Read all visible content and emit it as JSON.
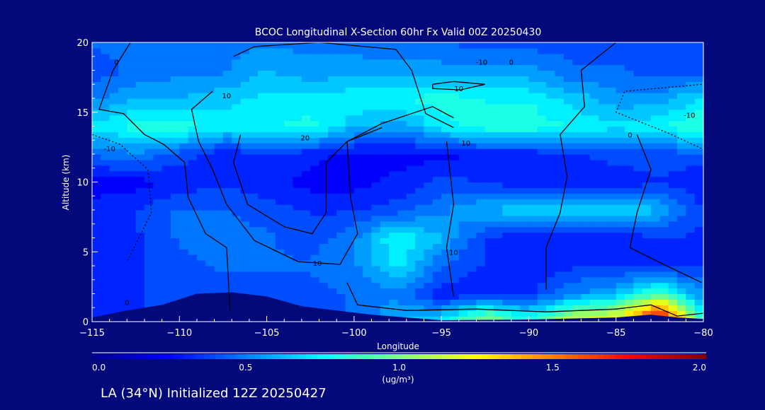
{
  "chart_data": {
    "type": "heatmap",
    "title": "BCOC Longitudinal X-Section 60hr  Fx Valid 00Z 20250430",
    "xlabel": "Longitude",
    "ylabel": "Altitude (km)",
    "xlim": [
      -115,
      -80
    ],
    "ylim": [
      0,
      20
    ],
    "x_ticks": [
      -115,
      -110,
      -105,
      -100,
      -95,
      -90,
      -85,
      -80
    ],
    "x_tick_labels": [
      "−115",
      "−110",
      "−105",
      "−100",
      "−95",
      "−90",
      "−85",
      "−80"
    ],
    "y_ticks": [
      0,
      5,
      10,
      15,
      20
    ],
    "y_tick_labels": [
      "0",
      "5",
      "10",
      "15",
      "20"
    ],
    "grid_lon": [
      -115,
      -112.5,
      -110,
      -107.5,
      -105,
      -102.5,
      -100,
      -97.5,
      -95,
      -92.5,
      -90,
      -87.5,
      -85,
      -82.5,
      -80
    ],
    "grid_alt": [
      0,
      2,
      4,
      6,
      8,
      10,
      12,
      14,
      16,
      18,
      20
    ],
    "values": [
      [
        0.3,
        0.35,
        0.4,
        0.4,
        0.4,
        0.4,
        0.45,
        0.6,
        0.7,
        1.1,
        0.8,
        1.2,
        1.3,
        2.0,
        0.8
      ],
      [
        0.35,
        0.35,
        0.4,
        0.4,
        0.4,
        0.4,
        0.45,
        0.5,
        0.3,
        0.3,
        0.35,
        0.5,
        0.6,
        0.9,
        0.5
      ],
      [
        0.3,
        0.35,
        0.4,
        0.45,
        0.45,
        0.45,
        0.5,
        0.7,
        0.45,
        0.35,
        0.3,
        0.35,
        0.35,
        0.3,
        0.35
      ],
      [
        0.3,
        0.35,
        0.45,
        0.5,
        0.45,
        0.4,
        0.5,
        0.78,
        0.6,
        0.35,
        0.3,
        0.3,
        0.3,
        0.35,
        0.35
      ],
      [
        0.3,
        0.35,
        0.45,
        0.45,
        0.4,
        0.35,
        0.35,
        0.4,
        0.5,
        0.62,
        0.65,
        0.72,
        0.72,
        0.6,
        0.35
      ],
      [
        0.25,
        0.25,
        0.3,
        0.35,
        0.3,
        0.25,
        0.25,
        0.3,
        0.4,
        0.35,
        0.3,
        0.3,
        0.3,
        0.35,
        0.3
      ],
      [
        0.45,
        0.5,
        0.4,
        0.3,
        0.35,
        0.3,
        0.25,
        0.25,
        0.25,
        0.3,
        0.3,
        0.35,
        0.4,
        0.4,
        0.4
      ],
      [
        0.7,
        0.8,
        0.82,
        0.72,
        0.75,
        0.8,
        0.62,
        0.55,
        0.72,
        0.82,
        0.82,
        0.75,
        0.7,
        0.75,
        0.85
      ],
      [
        0.5,
        0.6,
        0.6,
        0.65,
        0.7,
        0.7,
        0.75,
        0.75,
        0.8,
        0.75,
        0.75,
        0.65,
        0.55,
        0.55,
        0.7
      ],
      [
        0.4,
        0.45,
        0.5,
        0.5,
        0.6,
        0.55,
        0.55,
        0.55,
        0.55,
        0.55,
        0.55,
        0.45,
        0.45,
        0.4,
        0.4
      ],
      [
        0.45,
        0.5,
        0.5,
        0.5,
        0.5,
        0.5,
        0.5,
        0.45,
        0.45,
        0.4,
        0.4,
        0.4,
        0.4,
        0.4,
        0.4
      ]
    ],
    "terrain": [
      [
        -115,
        0.3
      ],
      [
        -113,
        0.8
      ],
      [
        -111,
        1.2
      ],
      [
        -109,
        2.0
      ],
      [
        -107,
        2.1
      ],
      [
        -105,
        1.8
      ],
      [
        -103,
        1.1
      ],
      [
        -101,
        0.8
      ],
      [
        -99,
        0.5
      ],
      [
        -97,
        0.3
      ],
      [
        -95,
        0.1
      ],
      [
        -90,
        0.15
      ],
      [
        -85,
        0.3
      ],
      [
        -83,
        0.5
      ],
      [
        -81.5,
        0.3
      ],
      [
        -80,
        0.2
      ]
    ],
    "colorbar": {
      "min": 0.0,
      "max": 2.0,
      "tick_labels": [
        "0.0",
        "0.5",
        "1.0",
        "1.5",
        "2.0"
      ],
      "tick_values": [
        0.0,
        0.5,
        1.0,
        1.5,
        2.0
      ],
      "unit_label": "(ug/m³)",
      "colors": [
        "#00008f",
        "#0000ff",
        "#00ffff",
        "#ffff00",
        "#ff0000",
        "#800000"
      ],
      "color_positions": [
        0,
        0.25,
        0.75,
        1.25,
        1.75,
        2.0
      ]
    },
    "contours": [
      {
        "dashed": false,
        "points": [
          [
            -112.8,
            20
          ],
          [
            -113.8,
            18
          ],
          [
            -114.6,
            15.2
          ],
          [
            -113.2,
            14.9
          ],
          [
            -112,
            13.4
          ],
          [
            -110.9,
            12.7
          ],
          [
            -109.7,
            11.4
          ],
          [
            -109.5,
            8.9
          ],
          [
            -108.5,
            6.3
          ],
          [
            -107.3,
            5.3
          ],
          [
            -107.1,
            0.8
          ]
        ]
      },
      {
        "dashed": false,
        "points": [
          [
            -108.1,
            16.5
          ],
          [
            -109.3,
            15.2
          ],
          [
            -108.9,
            12.9
          ],
          [
            -108.1,
            10.9
          ],
          [
            -107.3,
            8.4
          ],
          [
            -105.7,
            5.8
          ],
          [
            -103.2,
            4.3
          ],
          [
            -100.8,
            4.1
          ],
          [
            -99.8,
            6.3
          ],
          [
            -100.2,
            8.9
          ],
          [
            -100.4,
            12.9
          ],
          [
            -98.4,
            14.2
          ],
          [
            -95.5,
            15.4
          ],
          [
            -94.3,
            14.6
          ]
        ]
      },
      {
        "dashed": false,
        "points": [
          [
            -106.9,
            19
          ],
          [
            -105.7,
            19.7
          ],
          [
            -102,
            20
          ],
          [
            -97.6,
            19.5
          ],
          [
            -96.7,
            18
          ],
          [
            -95.9,
            14.9
          ],
          [
            -94.3,
            13.9
          ]
        ]
      },
      {
        "dashed": false,
        "points": [
          [
            -106.5,
            13.4
          ],
          [
            -106.9,
            11.4
          ],
          [
            -106.1,
            8.4
          ],
          [
            -104,
            6.8
          ],
          [
            -102.4,
            6.3
          ],
          [
            -101.6,
            7.8
          ],
          [
            -101.6,
            11.4
          ],
          [
            -100.4,
            12.9
          ],
          [
            -98.4,
            13.9
          ]
        ]
      },
      {
        "dashed": false,
        "points": [
          [
            -95.5,
            17
          ],
          [
            -94.3,
            17.2
          ],
          [
            -92.5,
            17
          ],
          [
            -93.9,
            16.6
          ],
          [
            -95.5,
            16.7
          ],
          [
            -95.5,
            17
          ]
        ]
      },
      {
        "dashed": false,
        "points": [
          [
            -85,
            20
          ],
          [
            -87,
            18
          ],
          [
            -86.8,
            15.4
          ],
          [
            -88.2,
            13.4
          ],
          [
            -87.8,
            10.4
          ],
          [
            -88.2,
            7.8
          ],
          [
            -89,
            5.3
          ],
          [
            -89,
            2.3
          ]
        ]
      },
      {
        "dashed": false,
        "points": [
          [
            -94.7,
            12.9
          ],
          [
            -94.3,
            8.4
          ],
          [
            -94.7,
            5.3
          ],
          [
            -94.3,
            1.8
          ]
        ]
      },
      {
        "dashed": false,
        "points": [
          [
            -83.8,
            13.4
          ],
          [
            -83,
            10.9
          ],
          [
            -83.8,
            7.8
          ],
          [
            -84.2,
            5.3
          ],
          [
            -82.6,
            4.3
          ],
          [
            -80.1,
            2.8
          ]
        ]
      },
      {
        "dashed": false,
        "points": [
          [
            -100.4,
            2.8
          ],
          [
            -99.8,
            1.2
          ],
          [
            -97,
            0.8
          ],
          [
            -93,
            0.9
          ],
          [
            -89,
            0.7
          ],
          [
            -85,
            0.9
          ],
          [
            -83,
            1.2
          ],
          [
            -81.5,
            0.4
          ],
          [
            -80,
            0.6
          ]
        ]
      },
      {
        "dashed": true,
        "points": [
          [
            -115,
            13.4
          ],
          [
            -113.4,
            12.7
          ],
          [
            -111.8,
            10.9
          ],
          [
            -111.6,
            7.8
          ],
          [
            -113,
            4.3
          ]
        ]
      },
      {
        "dashed": true,
        "points": [
          [
            -80.1,
            17
          ],
          [
            -84.5,
            16.5
          ],
          [
            -85,
            15
          ],
          [
            -82,
            13.5
          ],
          [
            -80.1,
            12.4
          ]
        ]
      }
    ],
    "contour_labels": [
      {
        "text": "0",
        "lon": -113.6,
        "alt": 18.6
      },
      {
        "text": "10",
        "lon": -107.3,
        "alt": 16.2
      },
      {
        "text": "20",
        "lon": -102.8,
        "alt": 13.2
      },
      {
        "text": "10",
        "lon": -93.6,
        "alt": 12.8
      },
      {
        "text": "10",
        "lon": -94.0,
        "alt": 16.7
      },
      {
        "text": "-10",
        "lon": -92.7,
        "alt": 18.6
      },
      {
        "text": "0",
        "lon": -91.0,
        "alt": 18.6
      },
      {
        "text": "-10",
        "lon": -114.0,
        "alt": 12.4
      },
      {
        "text": "-10",
        "lon": -80.8,
        "alt": 14.8
      },
      {
        "text": "0",
        "lon": -84.2,
        "alt": 13.4
      },
      {
        "text": "10",
        "lon": -94.3,
        "alt": 5.0
      },
      {
        "text": "10",
        "lon": -102.1,
        "alt": 4.2
      },
      {
        "text": "0",
        "lon": -113.0,
        "alt": 1.4
      }
    ]
  },
  "footer": {
    "caption": "LA (34°N) Initialized 12Z 20250427"
  }
}
